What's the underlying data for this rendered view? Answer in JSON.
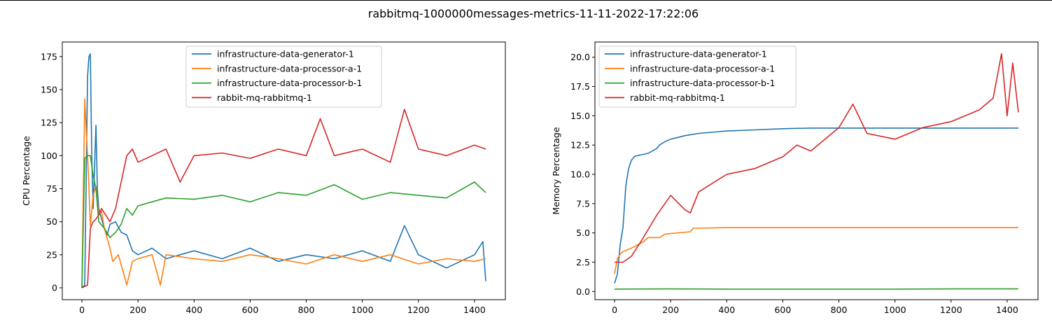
{
  "figure": {
    "title": "rabbitmq-1000000messages-metrics-11-11-2022-17:22:06"
  },
  "chart_data": [
    {
      "type": "line",
      "title": "",
      "xlabel": "",
      "ylabel": "CPU Percentage",
      "xlim": [
        -70,
        1510
      ],
      "ylim": [
        -9,
        186
      ],
      "xticks": [
        0,
        200,
        400,
        600,
        800,
        1000,
        1200,
        1400
      ],
      "yticks": [
        0,
        25,
        50,
        75,
        100,
        125,
        150,
        175
      ],
      "ytick_labels": [
        "0",
        "25",
        "50",
        "75",
        "100",
        "125",
        "150",
        "175"
      ],
      "legend": "upper-center",
      "grid": false,
      "series": [
        {
          "name": "infrastructure-data-generator-1",
          "color": "#1f77b4",
          "x": [
            0,
            10,
            20,
            25,
            30,
            35,
            40,
            50,
            55,
            60,
            70,
            80,
            90,
            100,
            120,
            140,
            160,
            180,
            200,
            250,
            300,
            400,
            500,
            600,
            700,
            800,
            900,
            1000,
            1100,
            1150,
            1200,
            1300,
            1400,
            1430,
            1440
          ],
          "y": [
            0,
            2,
            160,
            175,
            177,
            100,
            60,
            123,
            75,
            60,
            52,
            45,
            40,
            48,
            50,
            42,
            40,
            28,
            25,
            30,
            22,
            28,
            22,
            30,
            20,
            25,
            22,
            28,
            20,
            47,
            25,
            15,
            25,
            35,
            5
          ]
        },
        {
          "name": "infrastructure-data-processor-a-1",
          "color": "#ff7f0e",
          "x": [
            0,
            10,
            15,
            20,
            25,
            30,
            40,
            50,
            60,
            70,
            80,
            100,
            110,
            130,
            150,
            160,
            180,
            200,
            250,
            280,
            300,
            400,
            500,
            600,
            700,
            800,
            900,
            1000,
            1100,
            1200,
            1300,
            1400,
            1440
          ],
          "y": [
            0,
            143,
            120,
            100,
            75,
            47,
            70,
            77,
            55,
            58,
            45,
            30,
            20,
            25,
            10,
            2,
            20,
            22,
            25,
            2,
            25,
            22,
            20,
            25,
            22,
            18,
            25,
            20,
            25,
            18,
            22,
            20,
            22
          ]
        },
        {
          "name": "infrastructure-data-processor-b-1",
          "color": "#2ca02c",
          "x": [
            0,
            10,
            20,
            30,
            40,
            50,
            60,
            80,
            100,
            120,
            140,
            160,
            180,
            200,
            250,
            300,
            400,
            500,
            600,
            700,
            800,
            900,
            1000,
            1100,
            1200,
            1300,
            1400,
            1440
          ],
          "y": [
            0,
            98,
            100,
            100,
            85,
            75,
            50,
            45,
            38,
            42,
            48,
            60,
            55,
            62,
            65,
            68,
            67,
            70,
            65,
            72,
            70,
            78,
            67,
            72,
            70,
            68,
            80,
            72
          ]
        },
        {
          "name": "rabbit-mq-rabbitmq-1",
          "color": "#d62728",
          "x": [
            0,
            20,
            30,
            40,
            50,
            60,
            70,
            100,
            120,
            140,
            160,
            180,
            200,
            250,
            300,
            350,
            400,
            500,
            600,
            700,
            800,
            850,
            900,
            1000,
            1100,
            1150,
            1200,
            1300,
            1400,
            1440
          ],
          "y": [
            0,
            2,
            45,
            50,
            52,
            55,
            60,
            50,
            60,
            80,
            100,
            105,
            95,
            100,
            105,
            80,
            100,
            102,
            98,
            105,
            100,
            128,
            100,
            105,
            95,
            135,
            105,
            100,
            108,
            105
          ]
        }
      ]
    },
    {
      "type": "line",
      "title": "",
      "xlabel": "",
      "ylabel": "Memory Percentage",
      "xlim": [
        -70,
        1510
      ],
      "ylim": [
        -0.7,
        21.3
      ],
      "xticks": [
        0,
        200,
        400,
        600,
        800,
        1000,
        1200,
        1400
      ],
      "yticks": [
        0,
        2.5,
        5,
        7.5,
        10,
        12.5,
        15,
        17.5,
        20
      ],
      "ytick_labels": [
        "0.0",
        "2.5",
        "5.0",
        "7.5",
        "10.0",
        "12.5",
        "15.0",
        "17.5",
        "20.0"
      ],
      "legend": "upper-left",
      "grid": false,
      "series": [
        {
          "name": "infrastructure-data-generator-1",
          "color": "#1f77b4",
          "x": [
            0,
            10,
            20,
            30,
            40,
            50,
            60,
            70,
            80,
            100,
            120,
            150,
            160,
            180,
            200,
            250,
            300,
            400,
            500,
            600,
            700,
            800,
            900,
            1000,
            1200,
            1440
          ],
          "y": [
            0.7,
            1.5,
            4,
            5.5,
            9,
            10.5,
            11.2,
            11.5,
            11.6,
            11.7,
            11.8,
            12.2,
            12.5,
            12.8,
            13,
            13.3,
            13.5,
            13.7,
            13.8,
            13.9,
            13.95,
            13.95,
            13.95,
            13.95,
            13.95,
            13.95
          ]
        },
        {
          "name": "infrastructure-data-processor-a-1",
          "color": "#ff7f0e",
          "x": [
            0,
            10,
            20,
            30,
            60,
            100,
            120,
            140,
            160,
            180,
            200,
            270,
            280,
            400,
            600,
            800,
            1000,
            1200,
            1440
          ],
          "y": [
            1.5,
            2.8,
            3.2,
            3.4,
            3.7,
            4.2,
            4.6,
            4.6,
            4.6,
            4.9,
            4.95,
            5.1,
            5.4,
            5.45,
            5.45,
            5.45,
            5.45,
            5.45,
            5.45
          ]
        },
        {
          "name": "infrastructure-data-processor-b-1",
          "color": "#2ca02c",
          "x": [
            0,
            200,
            400,
            600,
            800,
            1000,
            1200,
            1440
          ],
          "y": [
            0.2,
            0.22,
            0.2,
            0.2,
            0.2,
            0.2,
            0.22,
            0.22
          ]
        },
        {
          "name": "rabbit-mq-rabbitmq-1",
          "color": "#d62728",
          "x": [
            0,
            30,
            60,
            100,
            150,
            200,
            250,
            270,
            300,
            400,
            500,
            600,
            650,
            700,
            800,
            850,
            900,
            1000,
            1100,
            1200,
            1300,
            1350,
            1380,
            1400,
            1420,
            1440
          ],
          "y": [
            2.5,
            2.5,
            3,
            4.5,
            6.5,
            8.2,
            7,
            6.7,
            8.5,
            10,
            10.5,
            11.5,
            12.5,
            12,
            14,
            16,
            13.5,
            13,
            14,
            14.5,
            15.5,
            16.5,
            20.3,
            15,
            19.5,
            15.3
          ]
        }
      ]
    }
  ]
}
